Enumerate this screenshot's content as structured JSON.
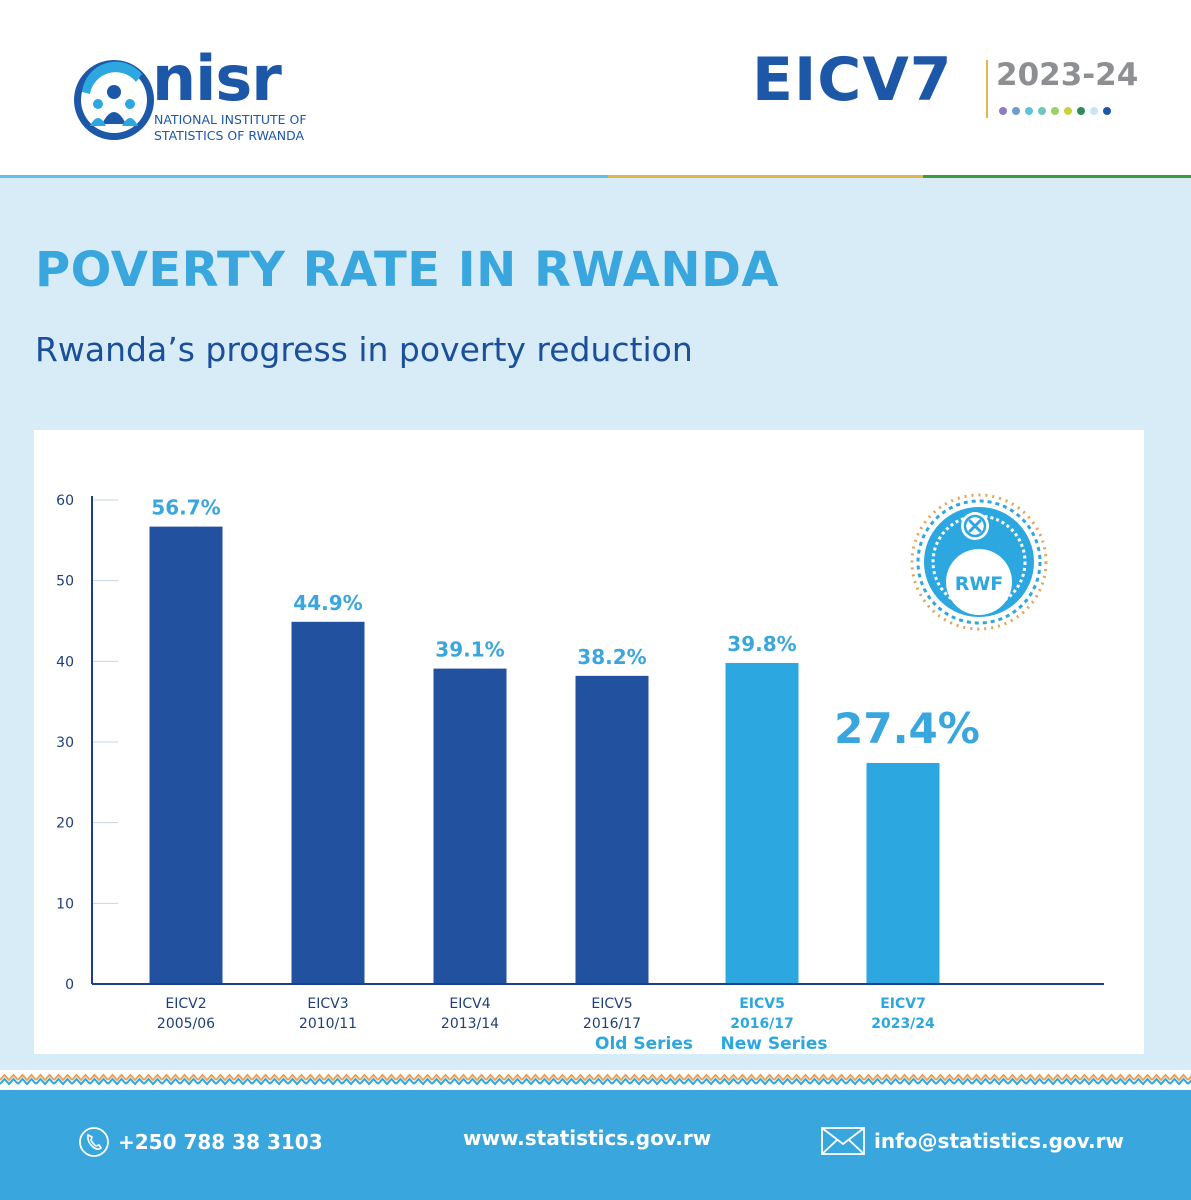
{
  "header": {
    "logo": {
      "name": "nisr",
      "line1": "NATIONAL INSTITUTE OF",
      "line2": "STATISTICS OF RWANDA"
    },
    "survey": "EICV7",
    "years": "2023-24",
    "dot_colors": [
      "#8f7bbd",
      "#6f9bd1",
      "#5cc3d8",
      "#6fc7c0",
      "#9bcf6a",
      "#c9d33b",
      "#2e8b57",
      "#c4e6f5",
      "#1d57a8"
    ],
    "line_colors": [
      "#62c1ea",
      "#e2b64a",
      "#3e9a3a"
    ]
  },
  "title": "POVERTY RATE IN RWANDA",
  "subtitle": "Rwanda’s progress in poverty reduction",
  "colors": {
    "old_series": "#22529f",
    "new_series": "#2ca7e0",
    "label": "#3aa6de",
    "axis": "#1b3f8a"
  },
  "badge": {
    "currency": "RWF"
  },
  "chart_data": {
    "type": "bar",
    "title": "POVERTY RATE IN RWANDA",
    "ylim": [
      0,
      60
    ],
    "yticks": [
      0,
      10,
      20,
      30,
      40,
      50,
      60
    ],
    "categories": [
      {
        "name": "EICV2",
        "period": "2005/06",
        "series": "old",
        "value": 56.7,
        "label": "56.7%"
      },
      {
        "name": "EICV3",
        "period": "2010/11",
        "series": "old",
        "value": 44.9,
        "label": "44.9%"
      },
      {
        "name": "EICV4",
        "period": "2013/14",
        "series": "old",
        "value": 39.1,
        "label": "39.1%"
      },
      {
        "name": "EICV5",
        "period": "2016/17",
        "series": "old",
        "value": 38.2,
        "label": "38.2%"
      },
      {
        "name": "EICV5",
        "period": "2016/17",
        "series": "new",
        "value": 39.8,
        "label": "39.8%"
      },
      {
        "name": "EICV7",
        "period": "2023/24",
        "series": "new",
        "value": 27.4,
        "label": "27.4%",
        "highlight": true
      }
    ],
    "group_labels": {
      "old": "Old Series",
      "new": "New Series"
    }
  },
  "footer": {
    "phone": "+250 788 38 3103",
    "website": "www.statistics.gov.rw",
    "email": "info@statistics.gov.rw"
  }
}
